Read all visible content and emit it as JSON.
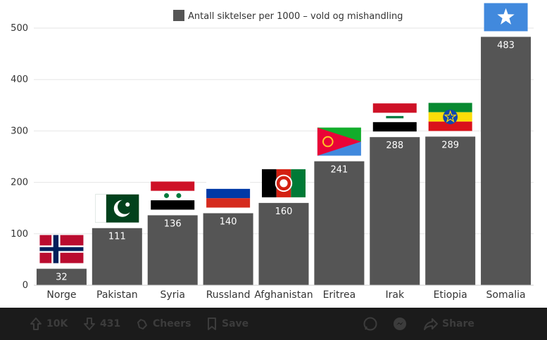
{
  "chart_data": {
    "type": "bar",
    "legend": "Antall siktelser per 1000 – vold og mishandling",
    "categories": [
      "Norge",
      "Pakistan",
      "Syria",
      "Russland",
      "Afghanistan",
      "Eritrea",
      "Irak",
      "Etiopia",
      "Somalia"
    ],
    "values": [
      32,
      111,
      136,
      140,
      160,
      241,
      288,
      289,
      483
    ],
    "value_labels": [
      "32",
      "111",
      "136",
      "140",
      "160",
      "241",
      "288",
      "289",
      "483"
    ],
    "yticks": [
      0,
      100,
      200,
      300,
      400,
      500
    ],
    "ylim": [
      0,
      500
    ],
    "grid": true,
    "legend_position": "top-center",
    "bar_color": "#555555",
    "flag_icons": [
      "norway-flag",
      "pakistan-flag",
      "syria-flag",
      "russia-flag",
      "afghanistan-flag",
      "eritrea-flag",
      "iraq-flag",
      "ethiopia-flag",
      "somalia-flag"
    ]
  },
  "toolbar": {
    "upvote_count": "10K",
    "downvote_count": "431",
    "cheers_label": "Cheers",
    "save_label": "Save",
    "share_label": "Share"
  }
}
